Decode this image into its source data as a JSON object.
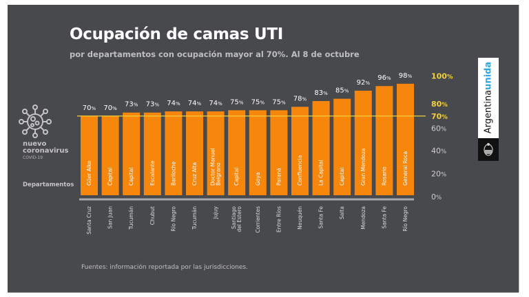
{
  "header": {
    "title": "Ocupación de camas UTI",
    "subtitle": "por departamentos con ocupación mayor al 70%. Al 8 de octubre"
  },
  "brand": {
    "line1": "nuevo",
    "line2": "coronavirus",
    "line3": "COVID-19",
    "icon": "virus-icon"
  },
  "logo": {
    "text_main": "Argentina",
    "text_accent": "unida",
    "emblem": "coat-of-arms-icon"
  },
  "axis_side_label": "Departamentos",
  "footer": {
    "source": "Fuentes: información reportada por las jurisdicciones."
  },
  "colors": {
    "background": "#48494d",
    "bar": "#f7870c",
    "reference_line": "#f2d03b",
    "highlight_tick": "#f2d03b",
    "tick": "#cfcfcf",
    "baseline": "#a9a9a9",
    "logo_accent": "#2ea7e0"
  },
  "chart_data": {
    "type": "bar",
    "title": "Ocupación de camas UTI",
    "subtitle": "por departamentos con ocupación mayor al 70%. Al 8 de octubre",
    "xlabel": "Departamentos",
    "ylabel": "",
    "ylim": [
      0,
      100
    ],
    "value_suffix": "%",
    "grid": false,
    "reference_line": {
      "value": 70,
      "label": "70%"
    },
    "y_ticks": [
      {
        "value": 100,
        "label": "100",
        "highlight": true
      },
      {
        "value": 80,
        "label": "80",
        "highlight": true
      },
      {
        "value": 70,
        "label": "70",
        "highlight": true
      },
      {
        "value": 60,
        "label": "60",
        "highlight": false
      },
      {
        "value": 40,
        "label": "40",
        "highlight": false
      },
      {
        "value": 20,
        "label": "20",
        "highlight": false
      },
      {
        "value": 0,
        "label": "0",
        "highlight": false
      }
    ],
    "categories": [
      "Güer Aike",
      "Capital",
      "Capital",
      "Escalante",
      "Bariloche",
      "Cruz Alta",
      "Doctor Manuel Belgrano",
      "Capital",
      "Goya",
      "Paraná",
      "Confluencia",
      "La Capital",
      "Capital",
      "Gran Mendoza",
      "Rosario",
      "General Roca"
    ],
    "provinces": [
      "Santa Cruz",
      "San Juan",
      "Tucumán",
      "Chubut",
      "Río Negro",
      "Tucumán",
      "Jujuy",
      "Santiago del Estero",
      "Corrientes",
      "Entre Ríos",
      "Neuquén",
      "Santa Fe",
      "Salta",
      "Mendoza",
      "Santa Fe",
      "Río Negro"
    ],
    "values": [
      70,
      70,
      73,
      73,
      74,
      74,
      74,
      75,
      75,
      75,
      78,
      83,
      85,
      92,
      96,
      98
    ]
  }
}
